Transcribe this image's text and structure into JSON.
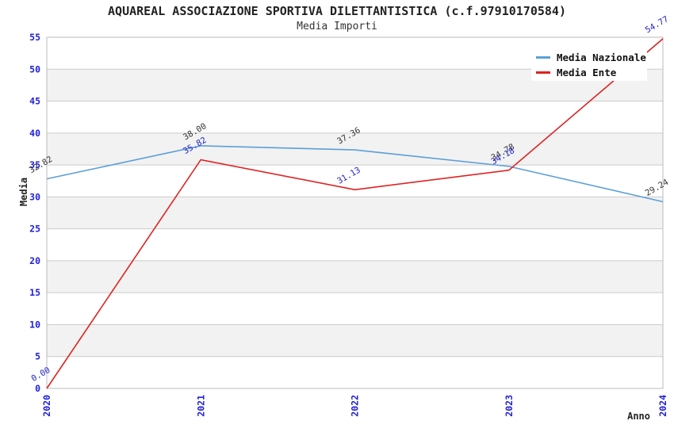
{
  "chart_data": {
    "type": "line",
    "title": "AQUAREAL ASSOCIAZIONE SPORTIVA DILETTANTISTICA (c.f.97910170584)",
    "subtitle": "Media Importi",
    "xlabel": "Anno",
    "ylabel": "Media",
    "categories": [
      "2020",
      "2021",
      "2022",
      "2023",
      "2024"
    ],
    "series": [
      {
        "name": "Media Nazionale",
        "color": "#5B9FD8",
        "label_color": "#333333",
        "values": [
          32.82,
          38.0,
          37.36,
          34.78,
          29.24
        ]
      },
      {
        "name": "Media Ente",
        "color": "#E02222",
        "label_color": "#2222CC",
        "values": [
          0.0,
          35.82,
          31.13,
          34.18,
          54.77
        ]
      }
    ],
    "ylim": [
      0,
      55
    ],
    "ytick_step": 5,
    "yticks": [
      0,
      5,
      10,
      15,
      20,
      25,
      30,
      35,
      40,
      45,
      50,
      55
    ],
    "grid": true,
    "legend_position": "top-right",
    "colors": {
      "tick": "#2020DD",
      "grid": "#CCCCCC",
      "frame": "#BBBBBB",
      "band": "#F2F2F2"
    }
  }
}
